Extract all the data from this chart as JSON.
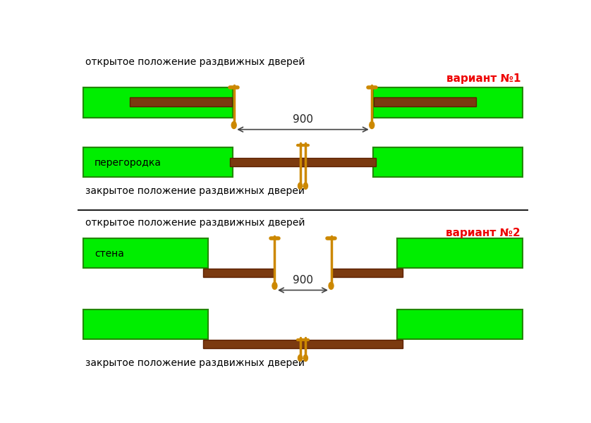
{
  "bg_color": "#ffffff",
  "green_color": "#00ee00",
  "brown_color": "#7B3A10",
  "handle_color": "#CC8800",
  "wall_outline": "#228800",
  "door_outline": "#5c2000",
  "text_color": "#000000",
  "red_color": "#ee0000",
  "divider_color": "#222222",
  "title1_open": "открытое положение раздвижных дверей",
  "title1_closed": "закрытое положение раздвижных дверей",
  "variant1": "вариант №1",
  "label1": "перегородка",
  "title2_open": "открытое положение раздвижных дверей",
  "title2_closed": "закрытое положение раздвижных дверей",
  "variant2": "вариант №2",
  "label2": "стена",
  "dim_label": "900",
  "font_size_title": 10,
  "font_size_variant": 11,
  "font_size_label": 10,
  "font_size_dim": 11
}
